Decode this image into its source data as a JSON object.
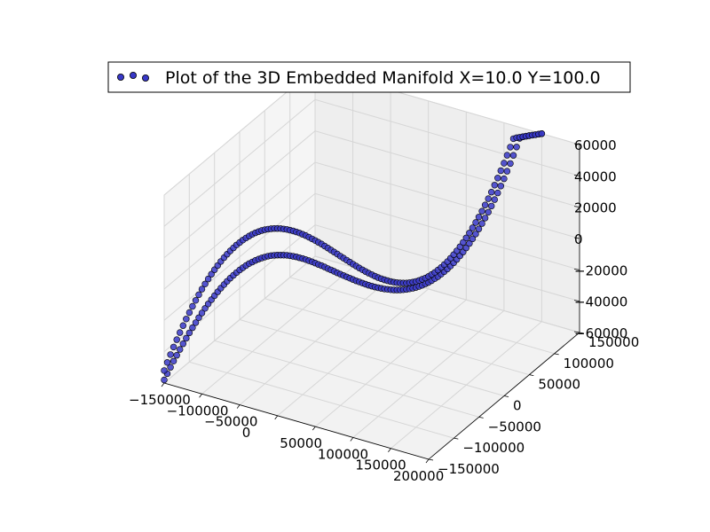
{
  "chart_data": {
    "type": "scatter",
    "projection": "3d",
    "legend": {
      "label": "Plot of the 3D Embedded Manifold X=10.0 Y=100.0",
      "placement": "top-center"
    },
    "x_ticks": [
      "−150000",
      "−100000",
      "−50000",
      "0",
      "50000",
      "100000",
      "150000",
      "200000"
    ],
    "y_ticks": [
      "−150000",
      "−100000",
      "−50000",
      "0",
      "50000",
      "100000",
      "150000"
    ],
    "z_ticks": [
      "−60000",
      "−40000",
      "−20000",
      "0",
      "20000",
      "40000",
      "60000"
    ],
    "xlim": [
      -150000,
      200000
    ],
    "ylim": [
      -150000,
      150000
    ],
    "zlim": [
      -60000,
      60000
    ],
    "grid": true,
    "colors": {
      "marker": "#3838c8",
      "marker_edge": "#000000",
      "pane": "#f2f2f2"
    },
    "series": [
      {
        "name": "Plot of the 3D Embedded Manifold X=10.0 Y=100.0",
        "curves": [
          {
            "x": [
              -150000,
              -147500,
              -145000,
              -142500,
              -140000,
              -137500,
              -135000,
              -132500,
              -130000,
              -127500,
              -125000,
              -122500,
              -120000,
              -117500,
              -115000,
              -112500,
              -110000,
              -107500,
              -105000,
              -102500,
              -100000,
              -97500,
              -95000,
              -92500,
              -90000,
              -87500,
              -85000,
              -82500,
              -80000,
              -77500,
              -75000,
              -72500,
              -70000,
              -67500,
              -65000,
              -62500,
              -60000,
              -57500,
              -55000,
              -52500,
              -50000,
              -47500,
              -45000,
              -42500,
              -40000,
              -37500,
              -35000,
              -32500,
              -30000,
              -27500,
              -25000,
              -22500,
              -20000,
              -17500,
              -15000,
              -12500,
              -10000,
              -7500,
              -5000,
              -2500,
              0,
              2500,
              5000,
              7500,
              10000,
              12500,
              15000,
              17500,
              20000,
              22500,
              25000,
              27500,
              30000,
              32500,
              35000,
              37500,
              40000,
              42500,
              45000,
              47500,
              50000,
              52500,
              55000,
              57500,
              60000,
              62500,
              65000,
              67500,
              70000,
              72500,
              75000,
              77500,
              80000,
              82500,
              85000,
              87500,
              90000,
              92500,
              95000,
              97500,
              100000,
              102500,
              105000,
              107500,
              110000,
              112500,
              115000,
              117500,
              120000,
              122500,
              125000,
              127500,
              130000,
              132500,
              135000,
              137500,
              140000,
              142500,
              145000,
              147500,
              150000
            ],
            "y": [
              -150000,
              -147500,
              -145000,
              -142500,
              -140000,
              -137500,
              -135000,
              -132500,
              -130000,
              -127500,
              -125000,
              -122500,
              -120000,
              -117500,
              -115000,
              -112500,
              -110000,
              -107500,
              -105000,
              -102500,
              -100000,
              -97500,
              -95000,
              -92500,
              -90000,
              -87500,
              -85000,
              -82500,
              -80000,
              -77500,
              -75000,
              -72500,
              -70000,
              -67500,
              -65000,
              -62500,
              -60000,
              -57500,
              -55000,
              -52500,
              -50000,
              -47500,
              -45000,
              -42500,
              -40000,
              -37500,
              -35000,
              -32500,
              -30000,
              -27500,
              -25000,
              -22500,
              -20000,
              -17500,
              -15000,
              -12500,
              -10000,
              -7500,
              -5000,
              -2500,
              0,
              2500,
              5000,
              7500,
              10000,
              12500,
              15000,
              17500,
              20000,
              22500,
              25000,
              27500,
              30000,
              32500,
              35000,
              37500,
              40000,
              42500,
              45000,
              47500,
              50000,
              52500,
              55000,
              57500,
              60000,
              62500,
              65000,
              67500,
              70000,
              72500,
              75000,
              77500,
              80000,
              82500,
              85000,
              87500,
              90000,
              92500,
              95000,
              97500,
              100000,
              102500,
              105000,
              107500,
              110000,
              112500,
              115000,
              117500,
              120000,
              122500,
              125000,
              127500,
              130000,
              132500,
              135000,
              137500,
              140000,
              142500,
              145000,
              147500,
              150000
            ],
            "z": [
              -58000,
              -54300,
              -50600,
              -47000,
              -43600,
              -40200,
              -36900,
              -33700,
              -30600,
              -27600,
              -24700,
              -21900,
              -19200,
              -16600,
              -14100,
              -11700,
              -9500,
              -7300,
              -5300,
              -3400,
              -1600,
              100,
              1600,
              3000,
              4300,
              5400,
              6500,
              7400,
              8100,
              8800,
              9300,
              9700,
              10000,
              10200,
              10200,
              10100,
              9900,
              9600,
              9200,
              8800,
              8200,
              7500,
              6800,
              5900,
              5100,
              4100,
              3100,
              2000,
              900,
              -300,
              -1400,
              -2600,
              -3900,
              -5100,
              -6300,
              -7600,
              -8800,
              -10000,
              -11200,
              -12400,
              -13500,
              -14700,
              -15700,
              -16800,
              -17800,
              -18800,
              -19700,
              -20600,
              -21400,
              -22100,
              -22800,
              -23400,
              -24000,
              -24400,
              -24800,
              -25100,
              -25300,
              -25400,
              -25400,
              -25300,
              -25100,
              -24800,
              -24400,
              -23800,
              -23200,
              -22400,
              -21500,
              -20500,
              -19300,
              -18000,
              -16600,
              -15000,
              -13300,
              -11500,
              -9500,
              -7400,
              -5100,
              -2600,
              0,
              2800,
              5700,
              8800,
              12000,
              15400,
              19000,
              22800,
              26700,
              30800,
              35100,
              39600,
              44200,
              49100,
              54100,
              59300,
              60000,
              60000,
              60000,
              60000,
              60000,
              60000,
              60000
            ]
          },
          {
            "x": [
              -150000,
              -147500,
              -145000,
              -142500,
              -140000,
              -137500,
              -135000,
              -132500,
              -130000,
              -127500,
              -125000,
              -122500,
              -120000,
              -117500,
              -115000,
              -112500,
              -110000,
              -107500,
              -105000,
              -102500,
              -100000,
              -97500,
              -95000,
              -92500,
              -90000,
              -87500,
              -85000,
              -82500,
              -80000,
              -77500,
              -75000,
              -72500,
              -70000,
              -67500,
              -65000,
              -62500,
              -60000,
              -57500,
              -55000,
              -52500,
              -50000,
              -47500,
              -45000,
              -42500,
              -40000,
              -37500,
              -35000,
              -32500,
              -30000,
              -27500,
              -25000,
              -22500,
              -20000,
              -17500,
              -15000,
              -12500,
              -10000,
              -7500,
              -5000,
              -2500,
              0,
              2500,
              5000,
              7500,
              10000,
              12500,
              15000,
              17500,
              20000,
              22500,
              25000,
              27500,
              30000,
              32500,
              35000,
              37500,
              40000,
              42500,
              45000,
              47500,
              50000,
              52500,
              55000,
              57500,
              60000,
              62500,
              65000,
              67500,
              70000,
              72500,
              75000,
              77500,
              80000,
              82500,
              85000,
              87500,
              90000,
              92500,
              95000,
              97500,
              100000,
              102500,
              105000,
              107500,
              110000,
              112500,
              115000,
              117500,
              120000,
              122500,
              125000,
              127500,
              130000,
              132500,
              135000,
              137500,
              140000,
              142500,
              145000,
              147500,
              150000
            ],
            "y": [
              -150000,
              -147500,
              -145000,
              -142500,
              -140000,
              -137500,
              -135000,
              -132500,
              -130000,
              -127500,
              -125000,
              -122500,
              -120000,
              -117500,
              -115000,
              -112500,
              -110000,
              -107500,
              -105000,
              -102500,
              -100000,
              -97500,
              -95000,
              -92500,
              -90000,
              -87500,
              -85000,
              -82500,
              -80000,
              -77500,
              -75000,
              -72500,
              -70000,
              -67500,
              -65000,
              -62500,
              -60000,
              -57500,
              -55000,
              -52500,
              -50000,
              -47500,
              -45000,
              -42500,
              -40000,
              -37500,
              -35000,
              -32500,
              -30000,
              -27500,
              -25000,
              -22500,
              -20000,
              -17500,
              -15000,
              -12500,
              -10000,
              -7500,
              -5000,
              -2500,
              0,
              2500,
              5000,
              7500,
              10000,
              12500,
              15000,
              17500,
              20000,
              22500,
              25000,
              27500,
              30000,
              32500,
              35000,
              37500,
              40000,
              42500,
              45000,
              47500,
              50000,
              52500,
              55000,
              57500,
              60000,
              62500,
              65000,
              67500,
              70000,
              72500,
              75000,
              77500,
              80000,
              82500,
              85000,
              87500,
              90000,
              92500,
              95000,
              97500,
              100000,
              102500,
              105000,
              107500,
              110000,
              112500,
              115000,
              117500,
              120000,
              122500,
              125000,
              127500,
              130000,
              132500,
              135000,
              137500,
              140000,
              142500,
              145000,
              147500,
              150000
            ],
            "z": [
              -52000,
              -47200,
              -42500,
              -38000,
              -33600,
              -29400,
              -25300,
              -21400,
              -17600,
              -14000,
              -10500,
              -7200,
              -4000,
              -1000,
              1900,
              4600,
              7100,
              9500,
              11700,
              13800,
              15700,
              17500,
              19100,
              20600,
              21900,
              23100,
              24100,
              25000,
              25800,
              26400,
              26900,
              27200,
              27400,
              27500,
              27400,
              27200,
              26900,
              26500,
              25900,
              25300,
              24500,
              23700,
              22700,
              21700,
              20600,
              19400,
              18100,
              16700,
              15300,
              13900,
              12400,
              10800,
              9200,
              7600,
              6000,
              4400,
              2700,
              1100,
              -500,
              -2100,
              -3700,
              -5300,
              -6800,
              -8300,
              -9700,
              -11100,
              -12400,
              -13700,
              -14900,
              -16000,
              -17000,
              -17900,
              -18800,
              -19500,
              -20100,
              -20600,
              -21000,
              -21300,
              -21400,
              -21400,
              -21300,
              -21000,
              -20600,
              -20100,
              -19400,
              -18500,
              -17500,
              -16300,
              -15000,
              -13500,
              -11900,
              -10100,
              -8100,
              -6000,
              -3700,
              -1300,
              1300,
              4100,
              7000,
              10100,
              13300,
              16700,
              20300,
              24000,
              27900,
              32000,
              36200,
              40600,
              45100,
              49800,
              54700,
              59700,
              60000,
              60000,
              60000,
              60000,
              60000,
              60000,
              60000,
              60000,
              60000
            ]
          }
        ]
      }
    ]
  }
}
